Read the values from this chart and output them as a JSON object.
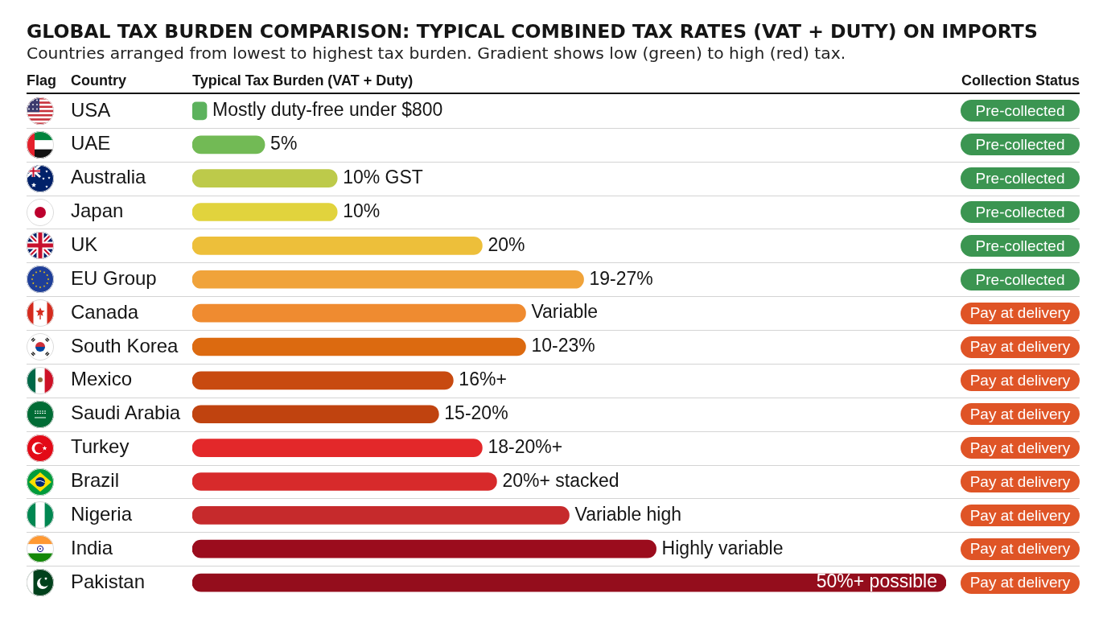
{
  "chart_data": {
    "type": "bar",
    "orientation": "horizontal",
    "title": "GLOBAL TAX BURDEN COMPARISON: TYPICAL COMBINED TAX RATES (VAT + DUTY) ON IMPORTS",
    "subtitle": "Countries arranged from lowest to highest tax burden. Gradient shows low (green) to high (red) tax.",
    "xlabel": "Typical Tax Burden (VAT + Duty)",
    "ylabel": "Country",
    "categories": [
      "USA",
      "UAE",
      "Australia",
      "Japan",
      "UK",
      "EU Group",
      "Canada",
      "South Korea",
      "Mexico",
      "Saudi Arabia",
      "Turkey",
      "Brazil",
      "Nigeria",
      "India",
      "Pakistan"
    ],
    "values": [
      1,
      5,
      10,
      10,
      20,
      27,
      23,
      23,
      18,
      17,
      20,
      21,
      26,
      32,
      52
    ],
    "colors": [
      "#5cb25d",
      "#72ba55",
      "#bdca4a",
      "#e1d33d",
      "#edbf3a",
      "#f0a33a",
      "#ef8b30",
      "#dc6a10",
      "#c84a10",
      "#c0430f",
      "#e3282a",
      "#d72a2b",
      "#c62a2c",
      "#9b0c1d",
      "#940d1c"
    ],
    "value_labels": [
      "Mostly duty-free under $800",
      "5%",
      "10% GST",
      "10%",
      "20%",
      null,
      "Variable",
      null,
      null,
      null,
      null,
      null,
      "Variable high",
      "Highly variable",
      null
    ],
    "xlim": [
      0,
      52
    ],
    "tick_labels": "y",
    "grid": "y",
    "annotations": [
      "Flag",
      "Collection Status",
      "Pre-collected",
      "Pre-collected",
      "Pre-collected",
      "Pre-collected",
      "Pre-collected",
      "Pre-collected",
      "Pay at delivery",
      "Pay at delivery",
      "Pay at delivery",
      "Pay at delivery",
      "Pay at delivery",
      "Pay at delivery",
      "Pay at delivery",
      "Pay at delivery",
      "Pay at delivery",
      {
        "text": "19-27%",
        "x": 27,
        "y": "EU Group"
      },
      {
        "text": "10-23%",
        "x": 23,
        "y": "South Korea"
      },
      {
        "text": "16%+",
        "x": 18,
        "y": "Mexico"
      },
      {
        "text": "15-20%",
        "x": 17,
        "y": "Saudi Arabia"
      },
      {
        "text": "18-20%+",
        "x": 20,
        "y": "Turkey"
      },
      {
        "text": "20%+ stacked",
        "x": 21,
        "y": "Brazil"
      },
      {
        "text": "50%+ possible",
        "x": 52,
        "y": "Pakistan"
      }
    ]
  }
}
